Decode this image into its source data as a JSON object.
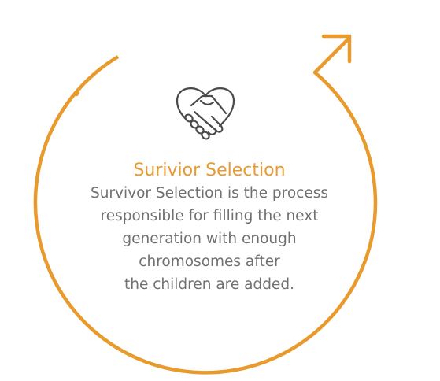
{
  "accent_color": "#E99A2C",
  "text_color": "#707070",
  "icon_color": "#4A4A4A",
  "icon": "handshake-heart-icon",
  "title": "Surivior Selection",
  "description_lines": [
    "Survivor Selection is the process",
    "responsible for filling the next",
    "generation with enough",
    "chromosomes after",
    "the children are added."
  ]
}
